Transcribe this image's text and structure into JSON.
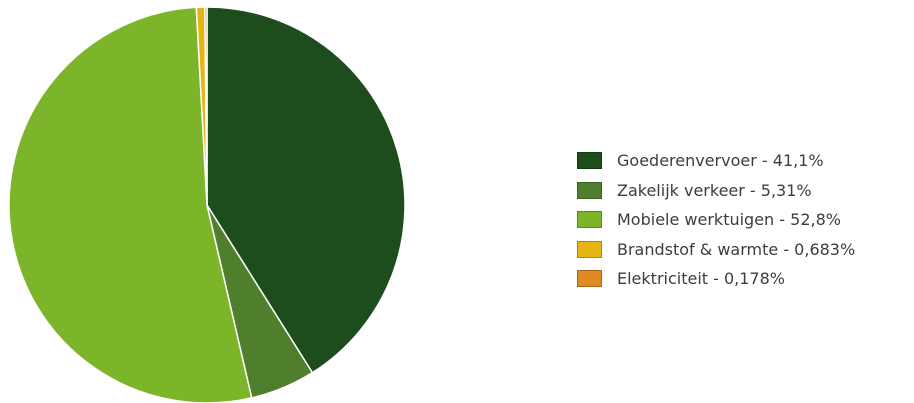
{
  "chart_data": {
    "type": "pie",
    "categories": [
      "Goederenvervoer",
      "Zakelijk verkeer",
      "Mobiele werktuigen",
      "Brandstof & warmte",
      "Elektriciteit"
    ],
    "values": [
      41.1,
      5.31,
      52.8,
      0.683,
      0.178
    ],
    "colors": [
      "#1d4d1c",
      "#4f7f2d",
      "#7db52a",
      "#e6b514",
      "#df8a25"
    ],
    "start_angle_deg": 0,
    "direction": "clockwise",
    "legend_position": "right",
    "legend": [
      {
        "label": "Goederenvervoer - 41,1%",
        "color": "#1d4d1c"
      },
      {
        "label": "Zakelijk verkeer - 5,31%",
        "color": "#4f7f2d"
      },
      {
        "label": "Mobiele werktuigen - 52,8%",
        "color": "#7db52a"
      },
      {
        "label": "Brandstof & warmte - 0,683%",
        "color": "#e6b514"
      },
      {
        "label": "Elektriciteit - 0,178%",
        "color": "#df8a25"
      }
    ]
  }
}
